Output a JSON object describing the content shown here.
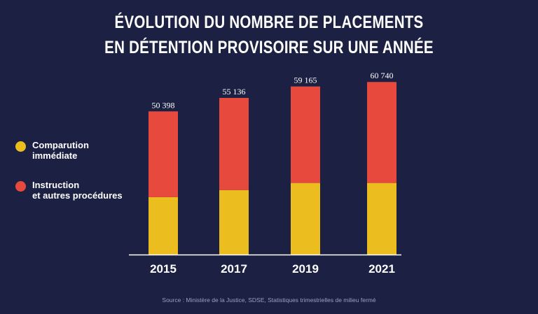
{
  "title_line1": "ÉVOLUTION DU NOMBRE DE PLACEMENTS",
  "title_line2": "EN DÉTENTION PROVISOIRE SUR UNE ANNÉE",
  "legend": [
    {
      "label_line1": "Comparution",
      "label_line2": "immédiate",
      "color": "#ecbd1f"
    },
    {
      "label_line1": "Instruction",
      "label_line2": "et autres procédures",
      "color": "#e8493d"
    }
  ],
  "source": "Source : Ministère de la Justice, SDSE, Statistiques trimestrielles de milieu fermé",
  "colors": {
    "background": "#1c2143",
    "comparution": "#ecbd1f",
    "instruction": "#e8493d",
    "axis": "#ffffff"
  },
  "chart_data": {
    "type": "bar",
    "stacked": true,
    "categories": [
      "2015",
      "2017",
      "2019",
      "2021"
    ],
    "series": [
      {
        "name": "Comparution immédiate",
        "values": [
          20200,
          22700,
          25200,
          25200
        ]
      },
      {
        "name": "Instruction et autres procédures",
        "values": [
          30198,
          32436,
          33965,
          35540
        ]
      }
    ],
    "totals": [
      50398,
      55136,
      59165,
      60740
    ],
    "total_labels": [
      "50 398",
      "55 136",
      "59 165",
      "60 740"
    ],
    "ylim": [
      0,
      64000
    ],
    "grid": false
  }
}
